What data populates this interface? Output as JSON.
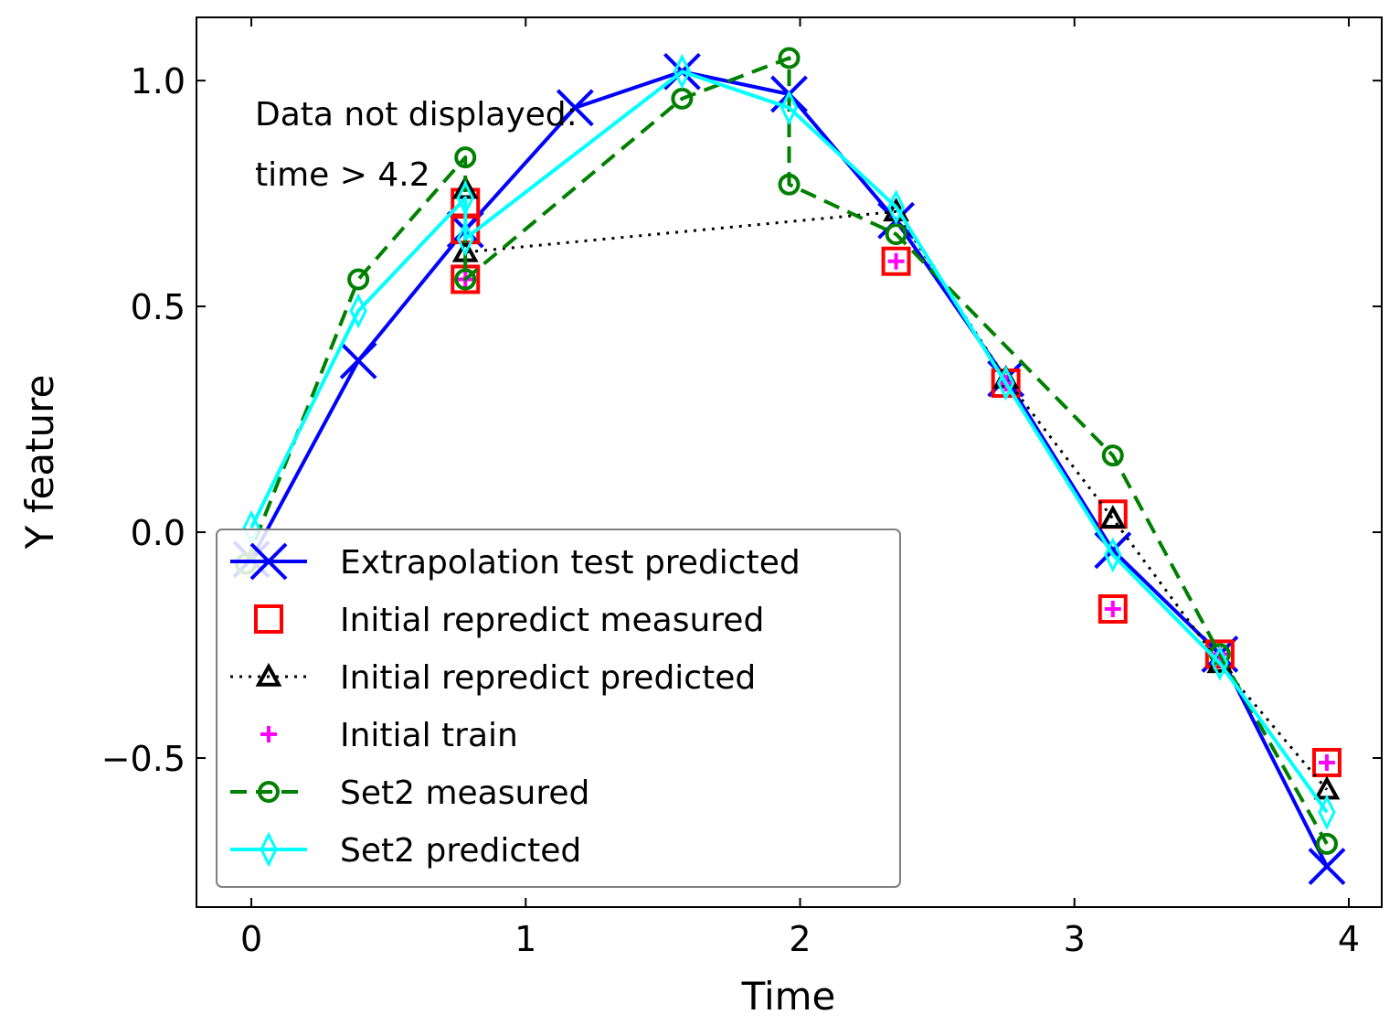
{
  "chart_data": {
    "type": "line",
    "title": "",
    "xlabel": "Time",
    "ylabel": "Y feature",
    "xlim": [
      -0.2,
      4.12
    ],
    "ylim": [
      -0.83,
      1.14
    ],
    "xticks": [
      0,
      1,
      2,
      3,
      4
    ],
    "xtick_labels": [
      "0",
      "1",
      "2",
      "3",
      "4"
    ],
    "yticks": [
      -0.5,
      0.0,
      0.5,
      1.0
    ],
    "ytick_labels": [
      "−0.5",
      "0.0",
      "0.5",
      "1.0"
    ],
    "grid": false,
    "legend_position": "lower-left",
    "annotations": [
      "Data not displayed:",
      "time > 4.2"
    ],
    "series": [
      {
        "name": "Extrapolation test predicted",
        "color": "#0000ff",
        "line": "solid",
        "marker": "x",
        "x": [
          0.0,
          0.39,
          0.78,
          1.18,
          1.57,
          1.96,
          2.35,
          2.75,
          3.14,
          3.53,
          3.92
        ],
        "y": [
          -0.06,
          0.38,
          0.67,
          0.94,
          1.02,
          0.97,
          0.69,
          0.34,
          -0.04,
          -0.27,
          -0.74
        ]
      },
      {
        "name": "Initial repredict measured",
        "color": "#ff0000",
        "line": "none",
        "marker": "square",
        "x": [
          0.78,
          0.78,
          0.78,
          2.35,
          2.75,
          3.14,
          3.14,
          3.53,
          3.92
        ],
        "y": [
          0.73,
          0.67,
          0.56,
          0.6,
          0.33,
          0.04,
          -0.17,
          -0.27,
          -0.51
        ]
      },
      {
        "name": "Initial repredict predicted",
        "color": "#000000",
        "line": "dotted",
        "marker": "triangle",
        "x": [
          0.78,
          0.78,
          2.35,
          2.75,
          3.14,
          3.53,
          3.92
        ],
        "y": [
          0.76,
          0.62,
          0.71,
          0.34,
          0.03,
          -0.29,
          -0.57
        ]
      },
      {
        "name": "Initial train",
        "color": "#ff00ff",
        "line": "none",
        "marker": "plus",
        "x": [
          0.78,
          2.35,
          2.75,
          3.14,
          3.53,
          3.92
        ],
        "y": [
          0.56,
          0.6,
          0.33,
          -0.17,
          -0.27,
          -0.51
        ]
      },
      {
        "name": "Set2 measured",
        "color": "#008000",
        "line": "dashed",
        "marker": "circle",
        "x": [
          -0.02,
          0.39,
          0.78,
          0.78,
          1.57,
          1.96,
          1.96,
          2.35,
          3.14,
          3.53,
          3.92
        ],
        "y": [
          -0.07,
          0.56,
          0.83,
          0.56,
          0.96,
          1.05,
          0.77,
          0.66,
          0.17,
          -0.27,
          -0.69
        ]
      },
      {
        "name": "Set2 predicted",
        "color": "#00ffff",
        "line": "solid",
        "marker": "thin-diamond",
        "x": [
          0.0,
          0.39,
          0.78,
          0.78,
          1.57,
          1.96,
          2.35,
          2.75,
          3.14,
          3.53,
          3.92
        ],
        "y": [
          0.01,
          0.49,
          0.74,
          0.65,
          1.02,
          0.94,
          0.72,
          0.33,
          -0.05,
          -0.29,
          -0.62
        ]
      }
    ]
  }
}
